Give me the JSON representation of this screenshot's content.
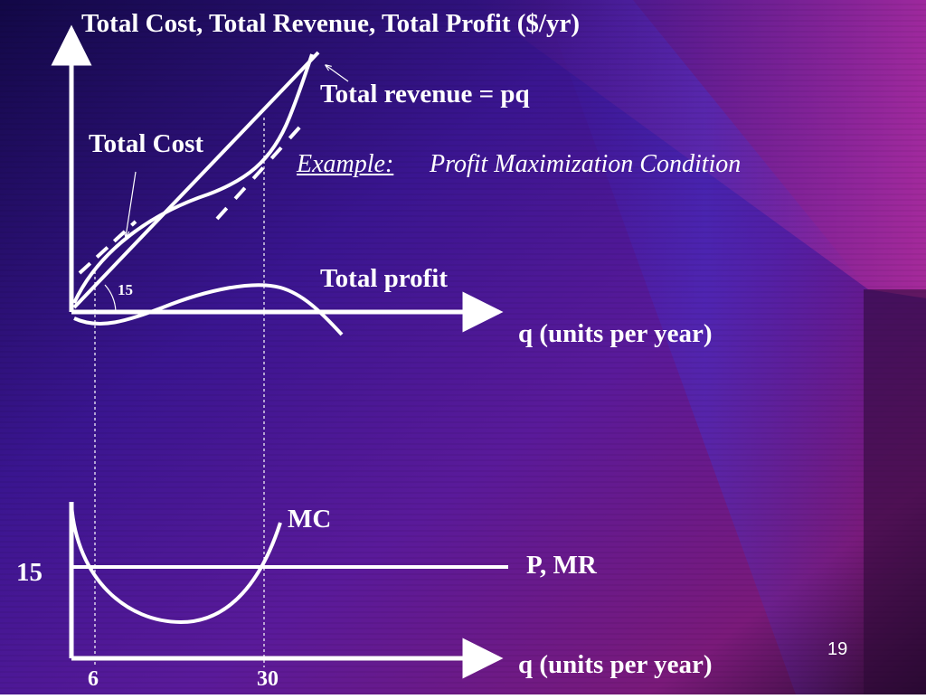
{
  "slide": {
    "title": "Total Cost, Total Revenue, Total Profit ($/yr)",
    "page_number": "19"
  },
  "top_panel": {
    "revenue_label": "Total revenue = pq",
    "cost_label": "Total Cost",
    "example_label": "Example:",
    "example_text": "Profit Maximization Condition",
    "profit_label": "Total profit",
    "slope_label": "15",
    "x_axis_label": "q (units per year)"
  },
  "bottom_panel": {
    "mc_label": "MC",
    "price_label": "P, MR",
    "price_value_label": "15",
    "x_axis_label": "q (units per year)",
    "x_tick_1": "6",
    "x_tick_2": "30"
  },
  "colors": {
    "line": "#ffffff",
    "background_dark": "#1a0a40",
    "background_purple": "#5a1a90",
    "background_magenta": "#8a2080"
  }
}
